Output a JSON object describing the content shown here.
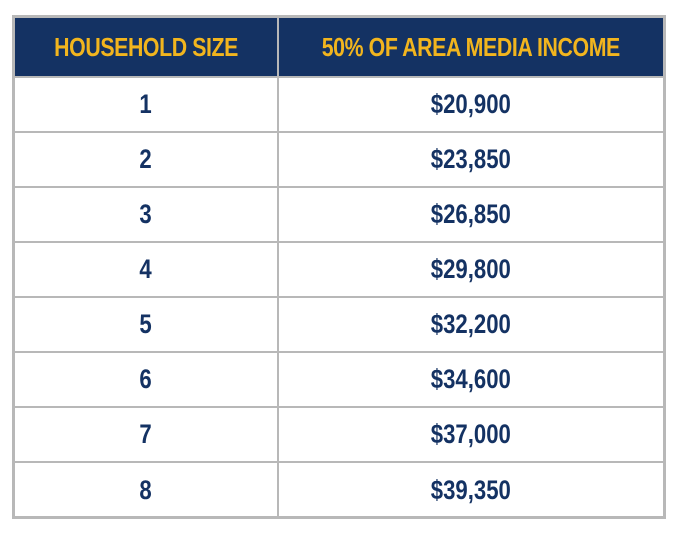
{
  "table": {
    "headers": [
      "HOUSEHOLD SIZE",
      "50% OF AREA MEDIA INCOME"
    ],
    "rows": [
      {
        "household_size": "1",
        "income": "$20,900"
      },
      {
        "household_size": "2",
        "income": "$23,850"
      },
      {
        "household_size": "3",
        "income": "$26,850"
      },
      {
        "household_size": "4",
        "income": "$29,800"
      },
      {
        "household_size": "5",
        "income": "$32,200"
      },
      {
        "household_size": "6",
        "income": "$34,600"
      },
      {
        "household_size": "7",
        "income": "$37,000"
      },
      {
        "household_size": "8",
        "income": "$39,350"
      }
    ]
  },
  "colors": {
    "header_background": "#143263",
    "header_text": "#f2b51e",
    "body_text": "#143263",
    "border": "#b8b8b8"
  }
}
